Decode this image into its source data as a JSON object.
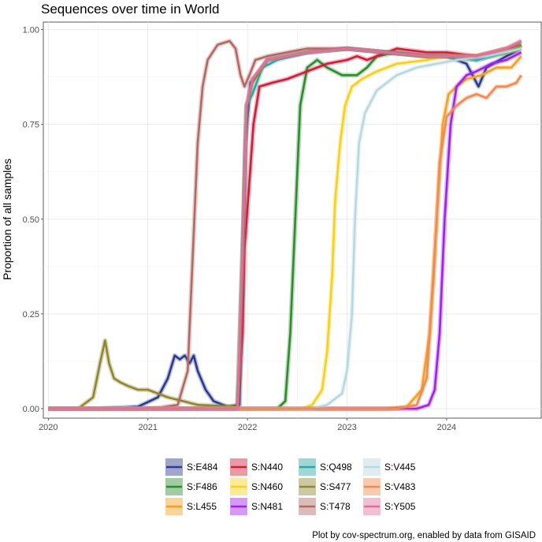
{
  "chart_data": {
    "type": "line",
    "title": "Sequences over time in World",
    "xlabel": "",
    "ylabel": "Proportion of all samples",
    "caption": "Plot by cov-spectrum.org, enabled by data from GISAID",
    "xlim": [
      2019.95,
      2024.95
    ],
    "ylim": [
      -0.025,
      1.02
    ],
    "x_ticks": [
      2020,
      2021,
      2022,
      2023,
      2024
    ],
    "x_tick_labels": [
      "2020",
      "2021",
      "2022",
      "2023",
      "2024"
    ],
    "y_ticks": [
      0.0,
      0.25,
      0.5,
      0.75,
      1.0
    ],
    "y_tick_labels": [
      "0.00",
      "0.25",
      "0.50",
      "0.75",
      "1.00"
    ],
    "grid": true,
    "legend_position": "bottom",
    "series": [
      {
        "name": "S:E484",
        "color": "#2c3a8c",
        "points": [
          [
            2020.0,
            0.0
          ],
          [
            2020.5,
            0.0
          ],
          [
            2020.9,
            0.005
          ],
          [
            2021.1,
            0.03
          ],
          [
            2021.2,
            0.08
          ],
          [
            2021.27,
            0.14
          ],
          [
            2021.32,
            0.13
          ],
          [
            2021.37,
            0.14
          ],
          [
            2021.42,
            0.12
          ],
          [
            2021.46,
            0.14
          ],
          [
            2021.5,
            0.1
          ],
          [
            2021.58,
            0.05
          ],
          [
            2021.66,
            0.02
          ],
          [
            2021.8,
            0.005
          ],
          [
            2021.92,
            0.01
          ],
          [
            2021.95,
            0.3
          ],
          [
            2021.98,
            0.7
          ],
          [
            2022.03,
            0.86
          ],
          [
            2022.2,
            0.92
          ],
          [
            2022.6,
            0.94
          ],
          [
            2023.0,
            0.95
          ],
          [
            2023.4,
            0.94
          ],
          [
            2023.8,
            0.93
          ],
          [
            2024.0,
            0.93
          ],
          [
            2024.2,
            0.91
          ],
          [
            2024.32,
            0.85
          ],
          [
            2024.4,
            0.9
          ],
          [
            2024.6,
            0.93
          ],
          [
            2024.75,
            0.95
          ]
        ]
      },
      {
        "name": "S:F486",
        "color": "#2e8b2e",
        "points": [
          [
            2020.0,
            0.0
          ],
          [
            2022.3,
            0.0
          ],
          [
            2022.38,
            0.02
          ],
          [
            2022.43,
            0.2
          ],
          [
            2022.48,
            0.5
          ],
          [
            2022.53,
            0.8
          ],
          [
            2022.6,
            0.9
          ],
          [
            2022.7,
            0.92
          ],
          [
            2022.8,
            0.9
          ],
          [
            2022.95,
            0.88
          ],
          [
            2023.1,
            0.88
          ],
          [
            2023.2,
            0.9
          ],
          [
            2023.3,
            0.93
          ],
          [
            2023.5,
            0.94
          ],
          [
            2023.8,
            0.93
          ],
          [
            2024.0,
            0.93
          ],
          [
            2024.3,
            0.92
          ],
          [
            2024.6,
            0.94
          ],
          [
            2024.75,
            0.96
          ]
        ]
      },
      {
        "name": "S:L455",
        "color": "#f5a020",
        "points": [
          [
            2020.0,
            0.0
          ],
          [
            2023.4,
            0.0
          ],
          [
            2023.6,
            0.005
          ],
          [
            2023.75,
            0.05
          ],
          [
            2023.83,
            0.2
          ],
          [
            2023.9,
            0.5
          ],
          [
            2023.96,
            0.75
          ],
          [
            2024.02,
            0.83
          ],
          [
            2024.1,
            0.85
          ],
          [
            2024.2,
            0.87
          ],
          [
            2024.35,
            0.88
          ],
          [
            2024.5,
            0.9
          ],
          [
            2024.65,
            0.9
          ],
          [
            2024.75,
            0.93
          ]
        ]
      },
      {
        "name": "S:N440",
        "color": "#d11c38",
        "points": [
          [
            2020.0,
            0.0
          ],
          [
            2021.9,
            0.0
          ],
          [
            2021.95,
            0.2
          ],
          [
            2021.97,
            0.42
          ],
          [
            2022.02,
            0.6
          ],
          [
            2022.06,
            0.75
          ],
          [
            2022.12,
            0.85
          ],
          [
            2022.25,
            0.86
          ],
          [
            2022.4,
            0.87
          ],
          [
            2022.6,
            0.89
          ],
          [
            2022.8,
            0.91
          ],
          [
            2023.0,
            0.92
          ],
          [
            2023.1,
            0.93
          ],
          [
            2023.2,
            0.92
          ],
          [
            2023.3,
            0.93
          ],
          [
            2023.5,
            0.95
          ],
          [
            2023.8,
            0.94
          ],
          [
            2024.0,
            0.94
          ],
          [
            2024.3,
            0.93
          ],
          [
            2024.6,
            0.95
          ],
          [
            2024.75,
            0.96
          ]
        ]
      },
      {
        "name": "S:N460",
        "color": "#f7d01e",
        "points": [
          [
            2020.0,
            0.0
          ],
          [
            2022.55,
            0.0
          ],
          [
            2022.65,
            0.01
          ],
          [
            2022.75,
            0.05
          ],
          [
            2022.8,
            0.15
          ],
          [
            2022.85,
            0.35
          ],
          [
            2022.88,
            0.55
          ],
          [
            2022.93,
            0.7
          ],
          [
            2022.98,
            0.8
          ],
          [
            2023.05,
            0.85
          ],
          [
            2023.15,
            0.87
          ],
          [
            2023.3,
            0.89
          ],
          [
            2023.5,
            0.91
          ],
          [
            2023.8,
            0.92
          ],
          [
            2024.0,
            0.93
          ],
          [
            2024.3,
            0.93
          ],
          [
            2024.6,
            0.94
          ],
          [
            2024.75,
            0.95
          ]
        ]
      },
      {
        "name": "S:N481",
        "color": "#a020f0",
        "points": [
          [
            2020.0,
            0.0
          ],
          [
            2023.7,
            0.0
          ],
          [
            2023.82,
            0.01
          ],
          [
            2023.88,
            0.05
          ],
          [
            2023.93,
            0.2
          ],
          [
            2023.98,
            0.5
          ],
          [
            2024.04,
            0.75
          ],
          [
            2024.1,
            0.85
          ],
          [
            2024.2,
            0.88
          ],
          [
            2024.3,
            0.89
          ],
          [
            2024.45,
            0.91
          ],
          [
            2024.6,
            0.92
          ],
          [
            2024.75,
            0.94
          ]
        ]
      },
      {
        "name": "S:Q498",
        "color": "#2aa6a6",
        "points": [
          [
            2020.0,
            0.0
          ],
          [
            2021.9,
            0.0
          ],
          [
            2021.96,
            0.5
          ],
          [
            2021.99,
            0.8
          ],
          [
            2022.05,
            0.83
          ],
          [
            2022.15,
            0.9
          ],
          [
            2022.3,
            0.92
          ],
          [
            2022.6,
            0.94
          ],
          [
            2023.0,
            0.95
          ],
          [
            2023.4,
            0.94
          ],
          [
            2023.8,
            0.93
          ],
          [
            2024.0,
            0.93
          ],
          [
            2024.3,
            0.92
          ],
          [
            2024.6,
            0.94
          ],
          [
            2024.75,
            0.96
          ]
        ]
      },
      {
        "name": "S:S477",
        "color": "#8f8630",
        "points": [
          [
            2020.0,
            0.0
          ],
          [
            2020.3,
            0.0
          ],
          [
            2020.45,
            0.03
          ],
          [
            2020.52,
            0.12
          ],
          [
            2020.57,
            0.18
          ],
          [
            2020.61,
            0.12
          ],
          [
            2020.66,
            0.08
          ],
          [
            2020.72,
            0.07
          ],
          [
            2020.8,
            0.06
          ],
          [
            2020.9,
            0.05
          ],
          [
            2021.0,
            0.05
          ],
          [
            2021.1,
            0.04
          ],
          [
            2021.2,
            0.03
          ],
          [
            2021.35,
            0.02
          ],
          [
            2021.5,
            0.01
          ],
          [
            2021.9,
            0.005
          ],
          [
            2021.95,
            0.4
          ],
          [
            2021.99,
            0.8
          ],
          [
            2022.05,
            0.86
          ],
          [
            2022.2,
            0.92
          ],
          [
            2022.6,
            0.94
          ],
          [
            2023.0,
            0.95
          ],
          [
            2023.4,
            0.94
          ],
          [
            2023.8,
            0.93
          ],
          [
            2024.3,
            0.93
          ],
          [
            2024.6,
            0.94
          ],
          [
            2024.75,
            0.96
          ]
        ]
      },
      {
        "name": "S:T478",
        "color": "#b06a63",
        "points": [
          [
            2020.0,
            0.0
          ],
          [
            2020.9,
            0.0
          ],
          [
            2021.1,
            0.002
          ],
          [
            2021.3,
            0.01
          ],
          [
            2021.4,
            0.1
          ],
          [
            2021.45,
            0.4
          ],
          [
            2021.5,
            0.7
          ],
          [
            2021.55,
            0.85
          ],
          [
            2021.6,
            0.92
          ],
          [
            2021.7,
            0.96
          ],
          [
            2021.82,
            0.97
          ],
          [
            2021.88,
            0.95
          ],
          [
            2021.93,
            0.88
          ],
          [
            2021.97,
            0.85
          ],
          [
            2022.02,
            0.88
          ],
          [
            2022.08,
            0.92
          ],
          [
            2022.2,
            0.93
          ],
          [
            2022.6,
            0.95
          ],
          [
            2023.0,
            0.95
          ],
          [
            2023.4,
            0.94
          ],
          [
            2023.8,
            0.93
          ],
          [
            2024.3,
            0.93
          ],
          [
            2024.6,
            0.95
          ],
          [
            2024.75,
            0.97
          ]
        ]
      },
      {
        "name": "S:V445",
        "color": "#b8d8e0",
        "points": [
          [
            2020.0,
            0.0
          ],
          [
            2022.65,
            0.0
          ],
          [
            2022.8,
            0.01
          ],
          [
            2022.95,
            0.04
          ],
          [
            2023.0,
            0.1
          ],
          [
            2023.05,
            0.25
          ],
          [
            2023.08,
            0.5
          ],
          [
            2023.12,
            0.7
          ],
          [
            2023.18,
            0.78
          ],
          [
            2023.3,
            0.84
          ],
          [
            2023.5,
            0.88
          ],
          [
            2023.7,
            0.9
          ],
          [
            2023.9,
            0.91
          ],
          [
            2024.1,
            0.92
          ],
          [
            2024.4,
            0.93
          ],
          [
            2024.75,
            0.95
          ]
        ]
      },
      {
        "name": "S:V483",
        "color": "#f08a50",
        "points": [
          [
            2020.0,
            0.0
          ],
          [
            2023.5,
            0.0
          ],
          [
            2023.7,
            0.01
          ],
          [
            2023.8,
            0.08
          ],
          [
            2023.87,
            0.35
          ],
          [
            2023.93,
            0.65
          ],
          [
            2024.0,
            0.77
          ],
          [
            2024.1,
            0.8
          ],
          [
            2024.2,
            0.82
          ],
          [
            2024.3,
            0.83
          ],
          [
            2024.4,
            0.82
          ],
          [
            2024.5,
            0.85
          ],
          [
            2024.6,
            0.85
          ],
          [
            2024.7,
            0.86
          ],
          [
            2024.75,
            0.88
          ]
        ]
      },
      {
        "name": "S:Y505",
        "color": "#e0709a",
        "points": [
          [
            2020.0,
            0.0
          ],
          [
            2021.9,
            0.0
          ],
          [
            2021.95,
            0.4
          ],
          [
            2021.99,
            0.8
          ],
          [
            2022.05,
            0.87
          ],
          [
            2022.2,
            0.92
          ],
          [
            2022.6,
            0.94
          ],
          [
            2023.0,
            0.95
          ],
          [
            2023.4,
            0.94
          ],
          [
            2023.8,
            0.93
          ],
          [
            2024.3,
            0.93
          ],
          [
            2024.6,
            0.95
          ],
          [
            2024.75,
            0.97
          ]
        ]
      }
    ]
  }
}
